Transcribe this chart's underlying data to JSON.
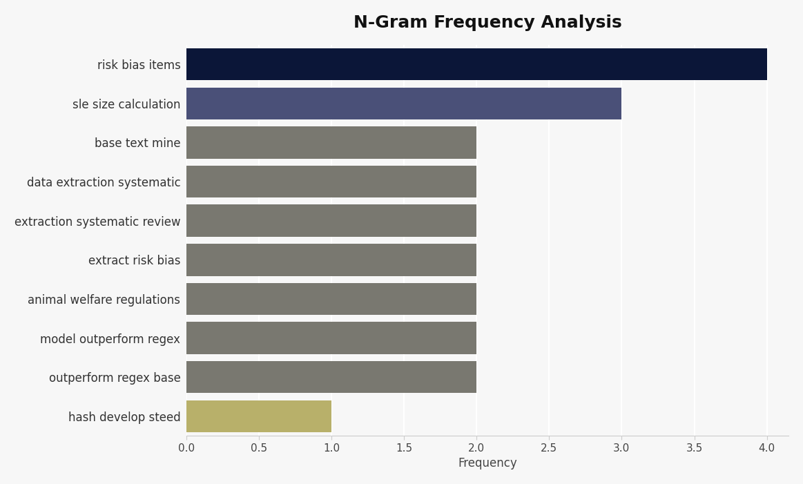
{
  "title": "N-Gram Frequency Analysis",
  "categories": [
    "hash develop steed",
    "outperform regex base",
    "model outperform regex",
    "animal welfare regulations",
    "extract risk bias",
    "extraction systematic review",
    "data extraction systematic",
    "base text mine",
    "sle size calculation",
    "risk bias items"
  ],
  "values": [
    1,
    2,
    2,
    2,
    2,
    2,
    2,
    2,
    3,
    4
  ],
  "bar_colors": [
    "#b8b06a",
    "#797870",
    "#797870",
    "#797870",
    "#797870",
    "#797870",
    "#797870",
    "#797870",
    "#4a5078",
    "#0b1638"
  ],
  "xlabel": "Frequency",
  "xlim": [
    0,
    4.15
  ],
  "xticks": [
    0.0,
    0.5,
    1.0,
    1.5,
    2.0,
    2.5,
    3.0,
    3.5,
    4.0
  ],
  "background_color": "#f7f7f7",
  "plot_bg_color": "#f7f7f7",
  "title_fontsize": 18,
  "label_fontsize": 12,
  "tick_fontsize": 11,
  "bar_height": 0.82
}
